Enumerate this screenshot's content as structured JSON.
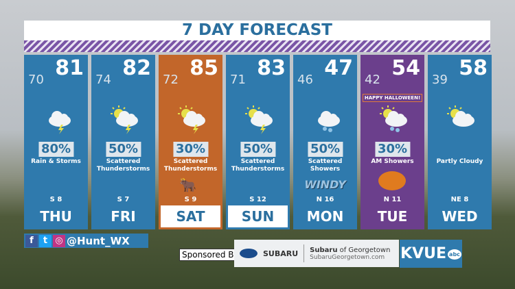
{
  "title": "7 DAY FORECAST",
  "colors": {
    "panel": "#2f7aad",
    "saturday": "#c2662a",
    "halloween": "#6b3f8c",
    "title_text": "#2b6f9e"
  },
  "days": [
    {
      "day": "THU",
      "high": "81",
      "low": "70",
      "precip": "80%",
      "desc": "Rain & Storms",
      "wind": "S 8",
      "icon": "thunderstorm-icon"
    },
    {
      "day": "FRI",
      "high": "82",
      "low": "74",
      "precip": "50%",
      "desc": "Scattered Thunderstorms",
      "wind": "S 7",
      "icon": "partly-sunny-storm-icon"
    },
    {
      "day": "SAT",
      "high": "85",
      "low": "72",
      "precip": "30%",
      "desc": "Scattered Thunderstorms",
      "wind": "S 9",
      "icon": "partly-sunny-storm-icon"
    },
    {
      "day": "SUN",
      "high": "83",
      "low": "71",
      "precip": "50%",
      "desc": "Scattered Thunderstorms",
      "wind": "S 12",
      "icon": "partly-sunny-storm-icon"
    },
    {
      "day": "MON",
      "high": "47",
      "low": "46",
      "precip": "50%",
      "desc": "Scattered Showers",
      "wind": "N 16",
      "icon": "showers-icon",
      "badge": "WINDY"
    },
    {
      "day": "TUE",
      "high": "54",
      "low": "42",
      "precip": "30%",
      "desc": "AM Showers",
      "wind": "N 11",
      "icon": "partly-sunny-showers-icon",
      "banner": "HAPPY HALLOWEEN!"
    },
    {
      "day": "WED",
      "high": "58",
      "low": "39",
      "precip": "",
      "desc": "Partly Cloudy",
      "wind": "NE 8",
      "icon": "partly-cloudy-icon"
    }
  ],
  "social": {
    "handle": "@Hunt_WX",
    "icons": [
      "facebook-icon",
      "twitter-icon",
      "instagram-icon"
    ]
  },
  "sponsor": {
    "label": "Sponsored By:",
    "brand": "SUBARU",
    "dealer_bold": "Subaru",
    "dealer_rest": " of Georgetown",
    "url": "SubaruGeorgetown.com"
  },
  "station": {
    "logo": "KVUE",
    "network": "abc"
  }
}
